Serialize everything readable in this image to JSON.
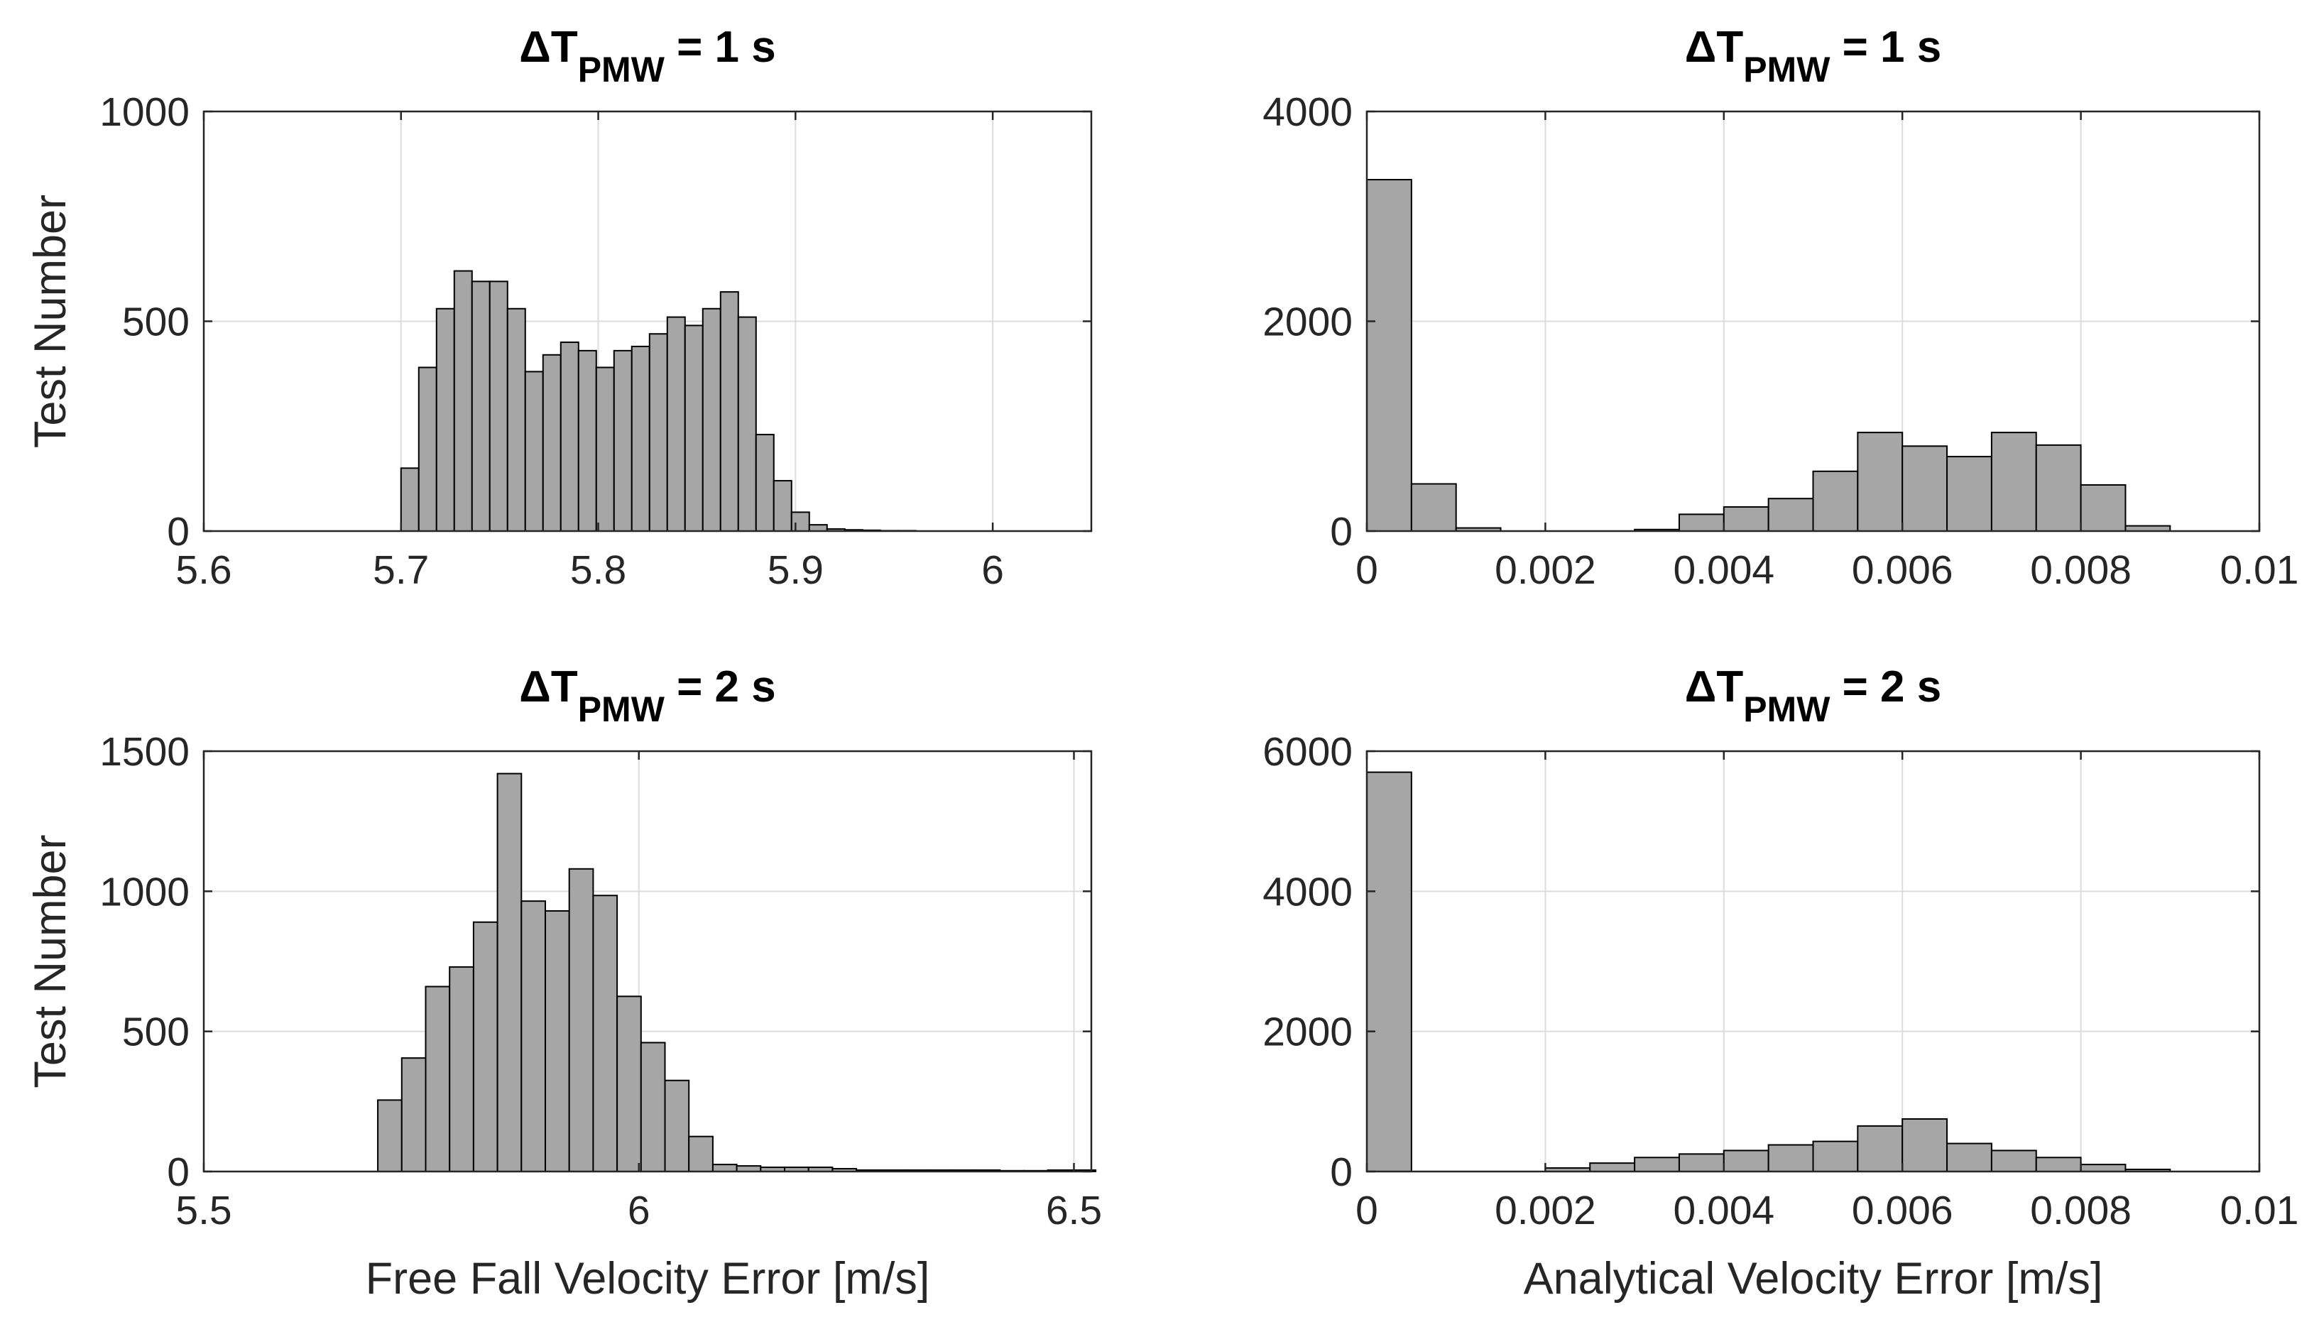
{
  "chart_data": [
    {
      "type": "bar",
      "subtype": "histogram",
      "title": {
        "prefix": "ΔT",
        "subscript": "PMW",
        "suffix": " = 1 s"
      },
      "xlabel": "",
      "ylabel": "Test Number",
      "xlim": [
        5.6,
        6.05
      ],
      "ylim": [
        0,
        1000
      ],
      "xticks": [
        5.6,
        5.7,
        5.8,
        5.9,
        6
      ],
      "xtick_labels": [
        "5.6",
        "5.7",
        "5.8",
        "5.9",
        "6"
      ],
      "yticks": [
        0,
        500,
        1000
      ],
      "ytick_labels": [
        "0",
        "500",
        "1000"
      ],
      "grid": true,
      "bin_edges": [
        5.7,
        5.709,
        5.718,
        5.727,
        5.736,
        5.745,
        5.754,
        5.763,
        5.772,
        5.781,
        5.79,
        5.799,
        5.808,
        5.817,
        5.826,
        5.835,
        5.844,
        5.853,
        5.862,
        5.871,
        5.88,
        5.889,
        5.898,
        5.907,
        5.916,
        5.925,
        5.934,
        5.943,
        5.952,
        5.961
      ],
      "values": [
        150,
        390,
        530,
        620,
        595,
        595,
        530,
        380,
        420,
        450,
        430,
        390,
        430,
        440,
        470,
        510,
        490,
        530,
        570,
        510,
        230,
        120,
        45,
        15,
        5,
        3,
        2,
        1,
        1
      ]
    },
    {
      "type": "bar",
      "subtype": "histogram",
      "title": {
        "prefix": "ΔT",
        "subscript": "PMW",
        "suffix": " = 1 s"
      },
      "xlabel": "",
      "ylabel": "",
      "xlim": [
        0,
        0.01
      ],
      "ylim": [
        0,
        4000
      ],
      "xticks": [
        0,
        0.002,
        0.004,
        0.006,
        0.008,
        0.01
      ],
      "xtick_labels": [
        "0",
        "0.002",
        "0.004",
        "0.006",
        "0.008",
        "0.01"
      ],
      "yticks": [
        0,
        2000,
        4000
      ],
      "ytick_labels": [
        "0",
        "2000",
        "4000"
      ],
      "grid": true,
      "bin_edges": [
        0,
        0.0005,
        0.001,
        0.0015,
        0.002,
        0.0025,
        0.003,
        0.0035,
        0.004,
        0.0045,
        0.005,
        0.0055,
        0.006,
        0.0065,
        0.007,
        0.0075,
        0.008,
        0.0085,
        0.009
      ],
      "values": [
        3350,
        450,
        30,
        0,
        0,
        0,
        15,
        160,
        230,
        310,
        570,
        940,
        810,
        710,
        940,
        820,
        440,
        50
      ]
    },
    {
      "type": "bar",
      "subtype": "histogram",
      "title": {
        "prefix": "ΔT",
        "subscript": "PMW",
        "suffix": " = 2 s"
      },
      "xlabel": "Free Fall Velocity Error [m/s]",
      "ylabel": "Test Number",
      "xlim": [
        5.5,
        6.52
      ],
      "ylim": [
        0,
        1500
      ],
      "xticks": [
        5.5,
        6,
        6.5
      ],
      "xtick_labels": [
        "5.5",
        "6",
        "6.5"
      ],
      "yticks": [
        0,
        500,
        1000,
        1500
      ],
      "ytick_labels": [
        "0",
        "500",
        "1000",
        "1500"
      ],
      "grid": true,
      "bin_edges": [
        5.7,
        5.7275,
        5.755,
        5.7825,
        5.81,
        5.8375,
        5.865,
        5.8925,
        5.92,
        5.9475,
        5.975,
        6.0025,
        6.03,
        6.0575,
        6.085,
        6.1125,
        6.14,
        6.1675,
        6.195,
        6.2225,
        6.25,
        6.2775,
        6.305,
        6.3325,
        6.36,
        6.3875,
        6.415,
        6.4425,
        6.47,
        6.4975,
        6.525
      ],
      "values": [
        255,
        405,
        660,
        730,
        890,
        1420,
        965,
        930,
        1080,
        985,
        625,
        460,
        325,
        125,
        25,
        20,
        15,
        15,
        15,
        10,
        5,
        5,
        5,
        5,
        5,
        5,
        3,
        3,
        5,
        5
      ]
    },
    {
      "type": "bar",
      "subtype": "histogram",
      "title": {
        "prefix": "ΔT",
        "subscript": "PMW",
        "suffix": " = 2 s"
      },
      "xlabel": "Analytical Velocity Error [m/s]",
      "ylabel": "",
      "xlim": [
        0,
        0.01
      ],
      "ylim": [
        0,
        6000
      ],
      "xticks": [
        0,
        0.002,
        0.004,
        0.006,
        0.008,
        0.01
      ],
      "xtick_labels": [
        "0",
        "0.002",
        "0.004",
        "0.006",
        "0.008",
        "0.01"
      ],
      "yticks": [
        0,
        2000,
        4000,
        6000
      ],
      "ytick_labels": [
        "0",
        "2000",
        "4000",
        "6000"
      ],
      "grid": true,
      "bin_edges": [
        0,
        0.0005,
        0.001,
        0.0015,
        0.002,
        0.0025,
        0.003,
        0.0035,
        0.004,
        0.0045,
        0.005,
        0.0055,
        0.006,
        0.0065,
        0.007,
        0.0075,
        0.008,
        0.0085,
        0.009
      ],
      "values": [
        5700,
        0,
        0,
        0,
        50,
        120,
        200,
        250,
        300,
        380,
        430,
        650,
        750,
        400,
        300,
        200,
        100,
        30
      ]
    }
  ]
}
